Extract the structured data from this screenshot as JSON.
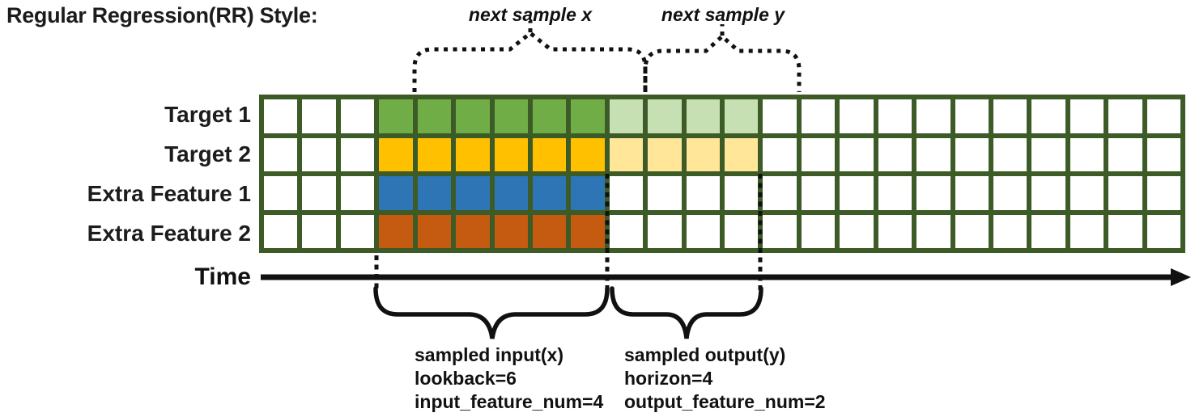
{
  "title": "Regular Regression(RR) Style:",
  "grid": {
    "columns": 24,
    "border_color": "#3D5B27",
    "empty_cell_color": "#FFFFFF",
    "input_start_col": 3,
    "lookback": 6,
    "horizon": 4,
    "rows": [
      {
        "label": "Target 1",
        "input_color": "#70AD47",
        "output_color": "#C6E0B4",
        "input": [
          3,
          8
        ],
        "output": [
          9,
          12
        ]
      },
      {
        "label": "Target 2",
        "input_color": "#FFC000",
        "output_color": "#FFE699",
        "input": [
          3,
          8
        ],
        "output": [
          9,
          12
        ]
      },
      {
        "label": "Extra Feature 1",
        "input_color": "#2E75B6",
        "output_color": null,
        "input": [
          3,
          8
        ],
        "output": null
      },
      {
        "label": "Extra Feature 2",
        "input_color": "#C55A11",
        "output_color": null,
        "input": [
          3,
          8
        ],
        "output": null
      }
    ]
  },
  "annotations": {
    "next_sample_x": "next sample x",
    "next_sample_y": "next sample y",
    "time_label": "Time",
    "input_block": {
      "lines": [
        "sampled input(x)",
        "lookback=6",
        "input_feature_num=4"
      ]
    },
    "output_block": {
      "lines": [
        "sampled output(y)",
        "horizon=4",
        "output_feature_num=2"
      ]
    }
  }
}
